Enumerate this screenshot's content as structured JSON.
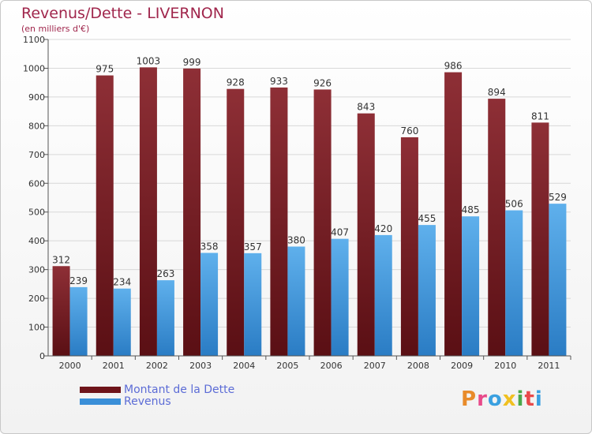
{
  "page": {
    "title": "Revenus/Dette - LIVERNON",
    "subtitle": "(en milliers d'€)"
  },
  "logo": {
    "letters": [
      "P",
      "r",
      "o",
      "x",
      "i",
      "t",
      "i"
    ],
    "colors": [
      "#e88b2a",
      "#e84a8a",
      "#3aa0e0",
      "#f0c020",
      "#4aa84a",
      "#e84a4a",
      "#3aa0e0"
    ]
  },
  "colors": {
    "debt": "#7a1f24",
    "debt_light": "#a23a40",
    "revenue": "#3a8fd8",
    "revenue_light": "#64b4ee",
    "grid": "#d8d8d8",
    "axis_text": "#333333",
    "value_text": "#333333"
  },
  "chart_data": {
    "type": "bar",
    "categories": [
      "2000",
      "2001",
      "2002",
      "2003",
      "2004",
      "2005",
      "2006",
      "2007",
      "2008",
      "2009",
      "2010",
      "2011"
    ],
    "series": [
      {
        "name": "Montant de la Dette",
        "values": [
          312,
          975,
          1003,
          999,
          928,
          933,
          926,
          843,
          760,
          986,
          894,
          811
        ]
      },
      {
        "name": "Revenus",
        "values": [
          239,
          234,
          263,
          358,
          357,
          380,
          407,
          420,
          455,
          485,
          506,
          529
        ]
      }
    ],
    "title": "Revenus/Dette - LIVERNON",
    "ylabel": "(en milliers d'€)",
    "ylim": [
      0,
      1100
    ],
    "yticks": [
      0,
      100,
      200,
      300,
      400,
      500,
      600,
      700,
      800,
      900,
      1000,
      1100
    ],
    "grid": true,
    "legend_position": "bottom-left"
  }
}
